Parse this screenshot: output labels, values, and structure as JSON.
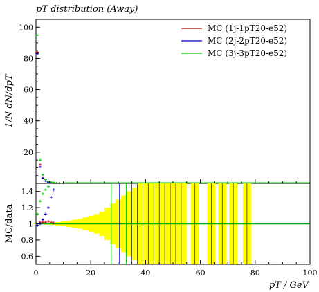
{
  "chart_data": [
    {
      "panel": "main",
      "type": "scatter",
      "title": "pT distribution (Away)",
      "ylabel": "1/N dN/dpT",
      "xlim": [
        0,
        100
      ],
      "ylim": [
        0,
        105
      ],
      "yticks": [
        "20",
        "40",
        "60",
        "80",
        "100"
      ],
      "grid": false,
      "legend_position": "top-right",
      "series": [
        {
          "name": "MC (1j-1pT20-e52)",
          "color": "#cc0000",
          "x": [
            0.5,
            1.5,
            2.5,
            3.5,
            4.5,
            5.5,
            6.5,
            7.5,
            8.5,
            10
          ],
          "y": [
            84,
            12.0,
            3.5,
            1.6,
            0.8,
            0.5,
            0.3,
            0.2,
            0.15,
            0.1
          ]
        },
        {
          "name": "MC (2j-2pT20-e52)",
          "color": "#0000cc",
          "x": [
            0.5,
            1.5,
            2.5,
            3.5,
            4.5,
            5.5,
            6.5,
            7.5,
            8.5,
            10
          ],
          "y": [
            83,
            10.5,
            3.3,
            1.5,
            0.8,
            0.5,
            0.3,
            0.2,
            0.15,
            0.1
          ]
        },
        {
          "name": "MC (3j-3pT20-e52)",
          "color": "#00cc00",
          "x": [
            0.5,
            1.5,
            2.5,
            3.5,
            4.5,
            5.5,
            6.5,
            7.5,
            8.5,
            10
          ],
          "y": [
            95,
            15.0,
            5.5,
            2.5,
            1.3,
            0.8,
            0.5,
            0.3,
            0.2,
            0.15
          ]
        }
      ]
    },
    {
      "panel": "ratio",
      "type": "scatter",
      "ylabel": "MC/data",
      "xlabel": "pT / GeV",
      "xlim": [
        0,
        100
      ],
      "ylim": [
        0.5,
        1.5
      ],
      "xticks": [
        "0",
        "20",
        "40",
        "60",
        "80",
        "100"
      ],
      "yticks": [
        "0.6",
        "0.8",
        "1",
        "1.2",
        "1.4"
      ],
      "reference": 1.0,
      "uncertainty_band": {
        "color": "#ffff00",
        "x": [
          1,
          3,
          5,
          7,
          9,
          11,
          13,
          15,
          17,
          19,
          21,
          23,
          25,
          27,
          29,
          31,
          33,
          35,
          37,
          39,
          41,
          43,
          45,
          47,
          49,
          51,
          53,
          58,
          64,
          68,
          72,
          77
        ],
        "halfwidth": [
          0.003,
          0.006,
          0.01,
          0.015,
          0.02,
          0.03,
          0.04,
          0.05,
          0.06,
          0.08,
          0.1,
          0.12,
          0.15,
          0.2,
          0.25,
          0.3,
          0.35,
          0.4,
          0.45,
          0.5,
          0.5,
          0.5,
          0.5,
          0.5,
          0.5,
          0.5,
          0.5,
          0.5,
          0.5,
          0.5,
          0.5,
          0.5
        ]
      },
      "series": [
        {
          "name": "MC (1j-1pT20-e52)",
          "color": "#cc0000",
          "x": [
            0.5,
            1.5,
            2.5,
            3.5,
            4.5,
            5.5,
            6.5
          ],
          "y": [
            0.98,
            1.02,
            1.02,
            1.02,
            1.03,
            1.02,
            1.01
          ]
        },
        {
          "name": "MC (2j-2pT20-e52)",
          "color": "#0000cc",
          "x": [
            0.5,
            1.5,
            2.5,
            3.5,
            4.5,
            5.5,
            6.5
          ],
          "y": [
            0.98,
            1.0,
            1.05,
            1.12,
            1.2,
            1.33,
            1.42
          ]
        },
        {
          "name": "MC (3j-3pT20-e52)",
          "color": "#00cc00",
          "x": [
            0.5,
            1.5,
            2.5,
            3.5,
            4.5
          ],
          "y": [
            1.12,
            1.28,
            1.37,
            1.42,
            1.46
          ]
        }
      ]
    }
  ]
}
